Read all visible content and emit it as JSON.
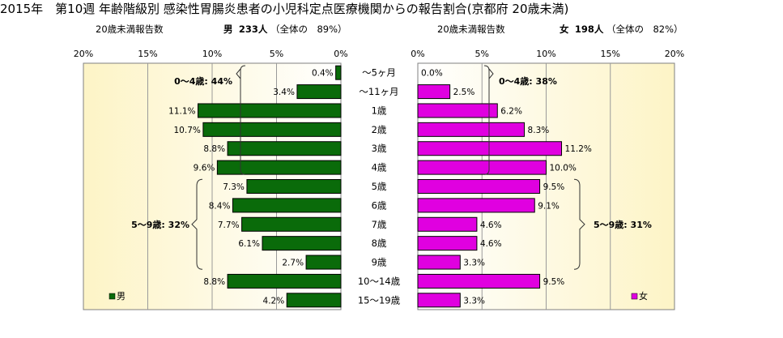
{
  "title": "2015年　第10週 年齢階級別 感染性胃腸炎患者の小児科定点医療機関からの報告割合(京都府 20歳未満)",
  "left_header": {
    "caption": "20歳未満報告数",
    "sex": "男",
    "count": "233人",
    "share": "（全体の　89%）"
  },
  "right_header": {
    "caption": "20歳未満報告数",
    "sex": "女",
    "count": "198人",
    "share": "（全体の　82%）"
  },
  "colors": {
    "male": "#0a6b0a",
    "female": "#e000e0",
    "plot_bg_edge": "#fdf4c6",
    "plot_bg_center": "#ffffff"
  },
  "chart_data": [
    {
      "type": "bar",
      "orientation": "horizontal",
      "direction": "right-to-left",
      "series": [
        {
          "name": "男",
          "values": [
            0.4,
            3.4,
            11.1,
            10.7,
            8.8,
            9.6,
            7.3,
            8.4,
            7.7,
            6.1,
            2.7,
            8.8,
            4.2
          ]
        }
      ],
      "value_labels": [
        "0.4%",
        "3.4%",
        "11.1%",
        "10.7%",
        "8.8%",
        "9.6%",
        "7.3%",
        "8.4%",
        "7.7%",
        "6.1%",
        "2.7%",
        "8.8%",
        "4.2%"
      ],
      "xlim": [
        0,
        20
      ],
      "x_ticks": [
        20,
        15,
        10,
        5,
        0
      ],
      "x_tick_labels": [
        "20%",
        "15%",
        "10%",
        "5%",
        "0%"
      ],
      "grid": true,
      "legend": {
        "label": "男",
        "placement": "bottom-left"
      },
      "annotations": [
        {
          "text": "0～4歳: 44%",
          "from_index": 0,
          "to_index": 5
        },
        {
          "text": "5～9歳: 32%",
          "from_index": 6,
          "to_index": 10
        }
      ]
    },
    {
      "type": "bar",
      "orientation": "horizontal",
      "direction": "left-to-right",
      "series": [
        {
          "name": "女",
          "values": [
            0.0,
            2.5,
            6.2,
            8.3,
            11.2,
            10.0,
            9.5,
            9.1,
            4.6,
            4.6,
            3.3,
            9.5,
            3.3
          ]
        }
      ],
      "value_labels": [
        "0.0%",
        "2.5%",
        "6.2%",
        "8.3%",
        "11.2%",
        "10.0%",
        "9.5%",
        "9.1%",
        "4.6%",
        "4.6%",
        "3.3%",
        "9.5%",
        "3.3%"
      ],
      "xlim": [
        0,
        20
      ],
      "x_ticks": [
        0,
        5,
        10,
        15,
        20
      ],
      "x_tick_labels": [
        "0%",
        "5%",
        "10%",
        "15%",
        "20%"
      ],
      "grid": true,
      "legend": {
        "label": "女",
        "placement": "bottom-left"
      },
      "annotations": [
        {
          "text": "0～4歳: 38%",
          "from_index": 0,
          "to_index": 5
        },
        {
          "text": "5～9歳: 31%",
          "from_index": 6,
          "to_index": 10
        }
      ]
    }
  ],
  "categories": [
    "～5ヶ月",
    "～11ヶ月",
    "1歳",
    "2歳",
    "3歳",
    "4歳",
    "5歳",
    "6歳",
    "7歳",
    "8歳",
    "9歳",
    "10～14歳",
    "15～19歳"
  ]
}
